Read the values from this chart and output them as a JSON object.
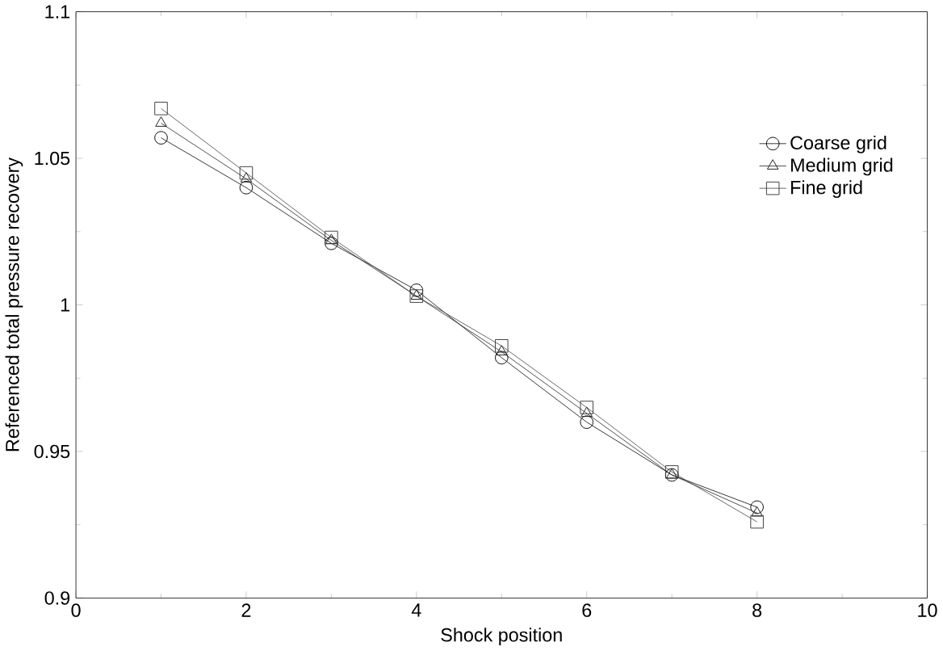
{
  "chart_data": {
    "type": "line",
    "xlabel": "Shock position",
    "ylabel": "Referenced total pressure recovery",
    "x": [
      1,
      2,
      3,
      4,
      5,
      6,
      7,
      8
    ],
    "xlim": [
      0,
      10
    ],
    "xticks": [
      0,
      2,
      4,
      6,
      8,
      10
    ],
    "ylim": [
      0.9,
      1.1
    ],
    "yticks": [
      0.9,
      0.95,
      1,
      1.05,
      1.1
    ],
    "legend": "top right",
    "grid": false,
    "line_style": "solid",
    "series": [
      {
        "name": "Coarse grid",
        "color": "#000000",
        "marker": "circle",
        "values": [
          1.057,
          1.04,
          1.021,
          1.005,
          0.982,
          0.96,
          0.942,
          0.931
        ]
      },
      {
        "name": "Medium grid",
        "color": "#202020",
        "marker": "triangle",
        "values": [
          1.062,
          1.043,
          1.022,
          1.003,
          0.984,
          0.963,
          0.942,
          0.929
        ]
      },
      {
        "name": "Fine grid",
        "color": "#404040",
        "marker": "square",
        "values": [
          1.067,
          1.045,
          1.023,
          1.003,
          0.986,
          0.965,
          0.943,
          0.926
        ]
      }
    ]
  }
}
